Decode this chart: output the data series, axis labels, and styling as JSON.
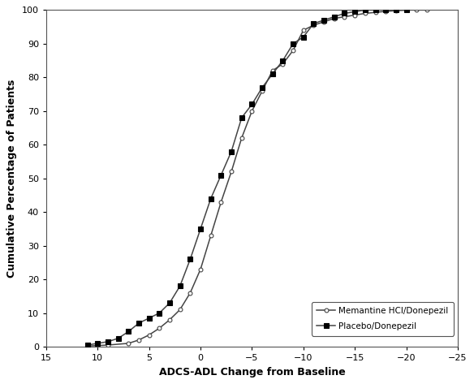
{
  "placebo_x": [
    11,
    10,
    9,
    8,
    7,
    6,
    5,
    4,
    3,
    2,
    1,
    0,
    -1,
    -2,
    -3,
    -4,
    -5,
    -6,
    -7,
    -8,
    -9,
    -10,
    -11,
    -12,
    -13,
    -14,
    -15,
    -16,
    -17,
    -18,
    -19,
    -20
  ],
  "placebo_y": [
    0.5,
    1.0,
    1.5,
    2.5,
    4.5,
    7.0,
    8.5,
    10.0,
    13.0,
    18.0,
    26.0,
    35.0,
    44.0,
    51.0,
    58.0,
    68.0,
    72.0,
    77.0,
    81.0,
    85.0,
    90.0,
    92.0,
    96.0,
    97.0,
    98.0,
    99.0,
    99.5,
    100.0,
    100.0,
    100.0,
    100.0,
    100.0
  ],
  "memantine_x": [
    11,
    9,
    7,
    6,
    5,
    4,
    3,
    2,
    1,
    0,
    -1,
    -2,
    -3,
    -4,
    -5,
    -6,
    -7,
    -8,
    -9,
    -10,
    -11,
    -12,
    -13,
    -14,
    -15,
    -16,
    -17,
    -18,
    -19,
    -20,
    -21,
    -22
  ],
  "memantine_y": [
    0.2,
    0.5,
    1.0,
    2.0,
    3.5,
    5.5,
    8.0,
    11.0,
    16.0,
    23.0,
    33.0,
    43.0,
    52.0,
    62.0,
    70.0,
    76.0,
    82.0,
    84.0,
    88.0,
    94.0,
    95.5,
    96.5,
    97.5,
    98.0,
    98.5,
    99.0,
    99.3,
    99.6,
    99.8,
    100.0,
    100.0,
    100.0
  ],
  "xlabel": "ADCS-ADL Change from Baseline",
  "ylabel": "Cumulative Percentage of Patients",
  "xlim": [
    15,
    -25
  ],
  "ylim": [
    0,
    100
  ],
  "xticks": [
    15,
    10,
    5,
    0,
    -5,
    -10,
    -15,
    -20,
    -25
  ],
  "yticks": [
    0,
    10,
    20,
    30,
    40,
    50,
    60,
    70,
    80,
    90,
    100
  ],
  "legend_placebo": "Placebo/Donepezil",
  "legend_memantine": "Memantine HCl/Donepezil",
  "line_color": "#444444",
  "marker_fill": "#000000",
  "background_color": "#ffffff"
}
